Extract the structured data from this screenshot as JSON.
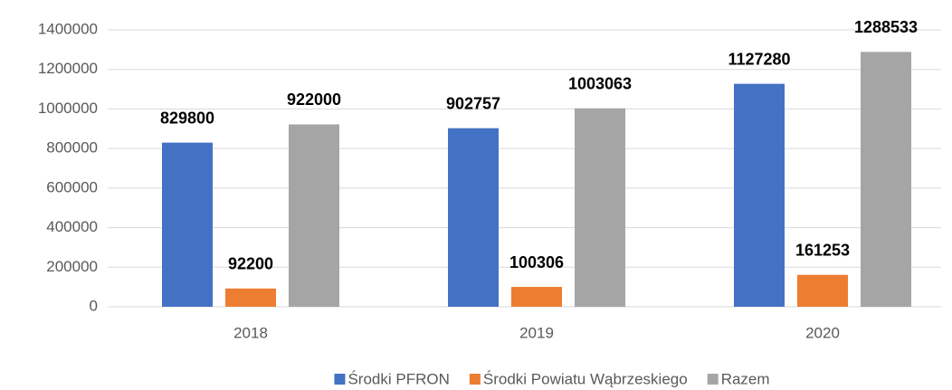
{
  "chart_data": {
    "type": "bar",
    "categories": [
      "2018",
      "2019",
      "2020"
    ],
    "series": [
      {
        "name": "Środki PFRON",
        "color": "#4472c4",
        "values": [
          829800,
          902757,
          1127280
        ]
      },
      {
        "name": "Środki Powiatu Wąbrzeskiego",
        "color": "#ed7d31",
        "values": [
          92200,
          100306,
          161253
        ]
      },
      {
        "name": "Razem",
        "color": "#a5a5a5",
        "values": [
          922000,
          1003063,
          1288533
        ]
      }
    ],
    "ylim": [
      0,
      1400000
    ],
    "yticks": [
      0,
      200000,
      400000,
      600000,
      800000,
      1000000,
      1200000,
      1400000
    ],
    "grid": true,
    "legend": "bottom"
  }
}
